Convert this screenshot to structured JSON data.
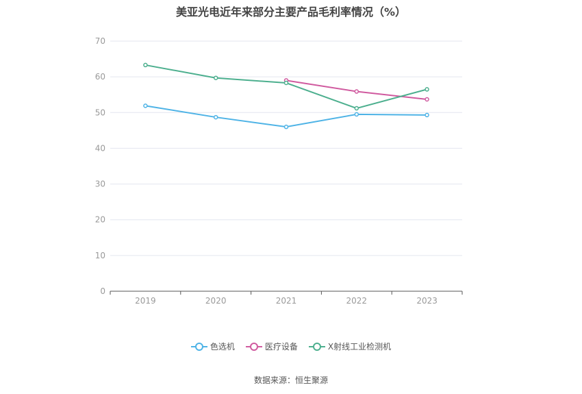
{
  "chart_data": {
    "type": "line",
    "title": "美亚光电近年来部分主要产品毛利率情况（%）",
    "categories": [
      "2019",
      "2020",
      "2021",
      "2022",
      "2023"
    ],
    "ylim": [
      0,
      70
    ],
    "yticks": [
      0,
      10,
      20,
      30,
      40,
      50,
      60,
      70
    ],
    "grid": true,
    "legend_position": "bottom",
    "series": [
      {
        "name": "色选机",
        "color": "#4eb3e6",
        "values": [
          51.9,
          48.7,
          46.0,
          49.5,
          49.3
        ]
      },
      {
        "name": "医疗设备",
        "color": "#d05a9f",
        "values": [
          null,
          null,
          59.0,
          55.9,
          53.7
        ]
      },
      {
        "name": "X射线工业检测机",
        "color": "#4caf8e",
        "values": [
          63.3,
          59.7,
          58.3,
          51.2,
          56.5
        ]
      }
    ]
  },
  "source": "数据来源：恒生聚源"
}
